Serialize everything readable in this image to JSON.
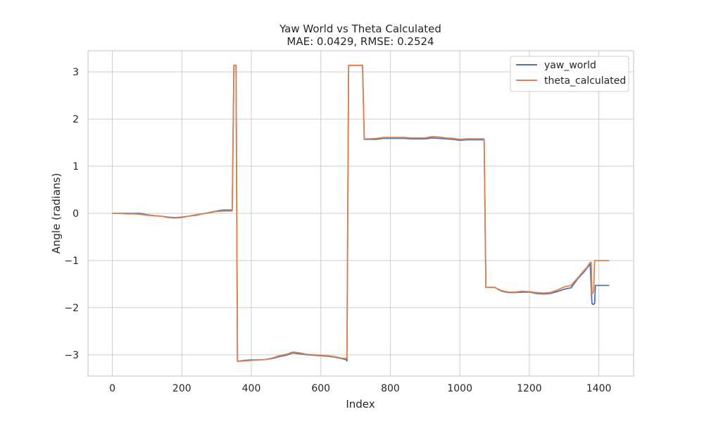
{
  "chart_data": {
    "type": "line",
    "title": "Yaw World vs Theta Calculated",
    "subtitle": "MAE: 0.0429, RMSE: 0.2524",
    "xlabel": "Index",
    "ylabel": "Angle (radians)",
    "xlim": [
      -70,
      1500
    ],
    "ylim": [
      -3.45,
      3.45
    ],
    "xticks": [
      0,
      200,
      400,
      600,
      800,
      1000,
      1200,
      1400
    ],
    "yticks": [
      -3,
      -2,
      -1,
      0,
      1,
      2,
      3
    ],
    "xtick_labels": [
      "0",
      "200",
      "400",
      "600",
      "800",
      "1000",
      "1200",
      "1400"
    ],
    "ytick_labels": [
      "−3",
      "−2",
      "−1",
      "0",
      "1",
      "2",
      "3"
    ],
    "grid": true,
    "legend_position": "top-right",
    "series": [
      {
        "name": "yaw_world",
        "color": "#4c72b0",
        "x": [
          0,
          20,
          40,
          60,
          80,
          100,
          120,
          140,
          160,
          180,
          200,
          220,
          240,
          260,
          280,
          300,
          320,
          345,
          350,
          356,
          360,
          380,
          400,
          420,
          440,
          460,
          480,
          500,
          520,
          540,
          560,
          580,
          600,
          620,
          640,
          660,
          672,
          675,
          680,
          700,
          720,
          725,
          740,
          760,
          780,
          800,
          820,
          840,
          860,
          880,
          900,
          920,
          940,
          960,
          980,
          1000,
          1020,
          1040,
          1060,
          1070,
          1075,
          1100,
          1120,
          1140,
          1160,
          1180,
          1200,
          1220,
          1240,
          1260,
          1280,
          1300,
          1320,
          1340,
          1355,
          1365,
          1375,
          1380,
          1382,
          1385,
          1388,
          1390,
          1395,
          1430
        ],
        "y": [
          0.0,
          0.0,
          0.0,
          0.0,
          0.0,
          -0.03,
          -0.05,
          -0.06,
          -0.08,
          -0.09,
          -0.08,
          -0.06,
          -0.04,
          -0.01,
          0.02,
          0.05,
          0.07,
          0.07,
          3.14,
          3.14,
          -3.14,
          -3.12,
          -3.11,
          -3.11,
          -3.1,
          -3.08,
          -3.04,
          -3.01,
          -2.96,
          -2.98,
          -3.0,
          -3.01,
          -3.02,
          -3.03,
          -3.05,
          -3.08,
          -3.1,
          -3.13,
          3.14,
          3.14,
          3.14,
          1.57,
          1.57,
          1.57,
          1.59,
          1.59,
          1.59,
          1.59,
          1.58,
          1.58,
          1.58,
          1.6,
          1.59,
          1.58,
          1.57,
          1.55,
          1.56,
          1.56,
          1.56,
          1.56,
          -1.57,
          -1.57,
          -1.65,
          -1.68,
          -1.68,
          -1.67,
          -1.67,
          -1.7,
          -1.71,
          -1.7,
          -1.66,
          -1.61,
          -1.58,
          -1.38,
          -1.26,
          -1.17,
          -1.07,
          -1.9,
          -1.93,
          -1.93,
          -1.91,
          -1.53,
          -1.53,
          -1.53
        ]
      },
      {
        "name": "theta_calculated",
        "color": "#dd8452",
        "x": [
          0,
          20,
          40,
          60,
          80,
          100,
          120,
          140,
          160,
          180,
          200,
          220,
          240,
          260,
          280,
          300,
          320,
          345,
          350,
          356,
          360,
          380,
          400,
          420,
          440,
          460,
          480,
          500,
          520,
          540,
          560,
          580,
          600,
          620,
          640,
          660,
          672,
          675,
          680,
          700,
          720,
          725,
          740,
          760,
          780,
          800,
          820,
          840,
          860,
          880,
          900,
          920,
          940,
          960,
          980,
          1000,
          1020,
          1040,
          1060,
          1070,
          1075,
          1100,
          1120,
          1140,
          1160,
          1180,
          1200,
          1220,
          1240,
          1260,
          1280,
          1300,
          1320,
          1340,
          1355,
          1365,
          1375,
          1378,
          1380,
          1382,
          1385,
          1388,
          1390,
          1395,
          1430
        ],
        "y": [
          0.0,
          0.0,
          -0.01,
          -0.01,
          -0.02,
          -0.04,
          -0.05,
          -0.06,
          -0.09,
          -0.1,
          -0.09,
          -0.06,
          -0.03,
          -0.01,
          0.01,
          0.04,
          0.05,
          0.05,
          3.14,
          3.14,
          -3.14,
          -3.13,
          -3.12,
          -3.11,
          -3.1,
          -3.07,
          -3.02,
          -2.99,
          -2.94,
          -2.96,
          -2.99,
          -3.0,
          -3.01,
          -3.02,
          -3.04,
          -3.07,
          -3.08,
          -3.08,
          3.14,
          3.14,
          3.14,
          1.58,
          1.58,
          1.59,
          1.61,
          1.61,
          1.61,
          1.61,
          1.6,
          1.6,
          1.6,
          1.63,
          1.62,
          1.6,
          1.59,
          1.57,
          1.58,
          1.58,
          1.58,
          1.58,
          -1.57,
          -1.57,
          -1.64,
          -1.67,
          -1.67,
          -1.65,
          -1.66,
          -1.68,
          -1.69,
          -1.68,
          -1.63,
          -1.56,
          -1.53,
          -1.36,
          -1.23,
          -1.15,
          -1.04,
          -1.04,
          -1.7,
          -1.7,
          -1.65,
          -1.0,
          -1.0,
          -1.0,
          -1.0
        ]
      }
    ]
  }
}
